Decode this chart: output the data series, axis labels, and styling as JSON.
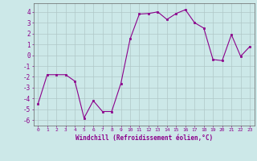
{
  "x": [
    0,
    1,
    2,
    3,
    4,
    5,
    6,
    7,
    8,
    9,
    10,
    11,
    12,
    13,
    14,
    15,
    16,
    17,
    18,
    19,
    20,
    21,
    22,
    23
  ],
  "y": [
    -4.5,
    -1.8,
    -1.8,
    -1.8,
    -2.4,
    -5.8,
    -4.2,
    -5.2,
    -5.2,
    -2.6,
    1.5,
    3.8,
    3.85,
    4.0,
    3.3,
    3.85,
    4.2,
    3.0,
    2.5,
    -0.4,
    -0.5,
    1.9,
    -0.1,
    0.8
  ],
  "line_color": "#8b008b",
  "marker_color": "#8b008b",
  "bg_color": "#cce8e8",
  "grid_color": "#b0c8c8",
  "xlabel": "Windchill (Refroidissement éolien,°C)",
  "xlabel_color": "#8b008b",
  "xtick_color": "#8b008b",
  "ytick_color": "#8b008b",
  "ylim": [
    -6.5,
    4.8
  ],
  "xlim": [
    -0.5,
    23.5
  ],
  "yticks": [
    -6,
    -5,
    -4,
    -3,
    -2,
    -1,
    0,
    1,
    2,
    3,
    4
  ],
  "xticks": [
    0,
    1,
    2,
    3,
    4,
    5,
    6,
    7,
    8,
    9,
    10,
    11,
    12,
    13,
    14,
    15,
    16,
    17,
    18,
    19,
    20,
    21,
    22,
    23
  ]
}
